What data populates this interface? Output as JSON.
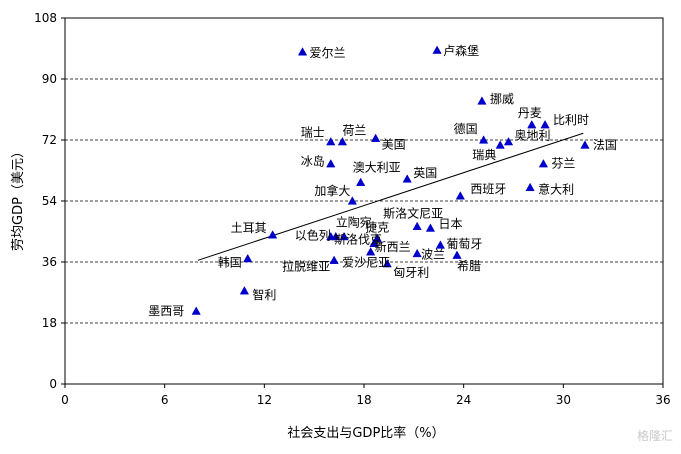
{
  "chart_data": {
    "type": "scatter",
    "title": "",
    "xlabel": "社会支出与GDP比率（%）",
    "ylabel": "劳均GDP（美元）",
    "xlim": [
      0,
      36
    ],
    "ylim": [
      0,
      108
    ],
    "xticks": [
      0,
      6,
      12,
      18,
      24,
      30,
      36
    ],
    "yticks": [
      0,
      18,
      36,
      54,
      72,
      90,
      108
    ],
    "grid": "horizontal-dashed",
    "marker": "triangle",
    "marker_color": "#0000cc",
    "trendline": {
      "x": [
        8,
        31.2
      ],
      "y": [
        36.5,
        74
      ]
    },
    "points": [
      {
        "label": "墨西哥",
        "x": 7.9,
        "y": 21.5
      },
      {
        "label": "智利",
        "x": 10.8,
        "y": 27.5
      },
      {
        "label": "韩国",
        "x": 11,
        "y": 37
      },
      {
        "label": "土耳其",
        "x": 12.5,
        "y": 44
      },
      {
        "label": "爱尔兰",
        "x": 14.3,
        "y": 98
      },
      {
        "label": "瑞士",
        "x": 16,
        "y": 71.5
      },
      {
        "label": "荷兰",
        "x": 16.7,
        "y": 71.5
      },
      {
        "label": "冰岛",
        "x": 16,
        "y": 65
      },
      {
        "label": "以色列",
        "x": 16,
        "y": 43.5
      },
      {
        "label": "立陶宛",
        "x": 16.3,
        "y": 43.5
      },
      {
        "label": "爱沙尼亚",
        "x": 16.8,
        "y": 43.5
      },
      {
        "label": "拉脱维亚",
        "x": 16.2,
        "y": 36.5
      },
      {
        "label": "加拿大",
        "x": 17.3,
        "y": 54
      },
      {
        "label": "澳大利亚",
        "x": 17.8,
        "y": 59.5
      },
      {
        "label": "美国",
        "x": 18.7,
        "y": 72.5
      },
      {
        "label": "捷克",
        "x": 18.8,
        "y": 43
      },
      {
        "label": "斯洛伐克",
        "x": 18.6,
        "y": 41.5
      },
      {
        "label": "新西兰",
        "x": 18.4,
        "y": 39
      },
      {
        "label": "匈牙利",
        "x": 19.4,
        "y": 35.5
      },
      {
        "label": "英国",
        "x": 20.6,
        "y": 60.5
      },
      {
        "label": "斯洛文尼亚",
        "x": 21.2,
        "y": 46.5
      },
      {
        "label": "日本",
        "x": 22,
        "y": 46
      },
      {
        "label": "波兰",
        "x": 21.2,
        "y": 38.5
      },
      {
        "label": "葡萄牙",
        "x": 22.6,
        "y": 41
      },
      {
        "label": "希腊",
        "x": 23.6,
        "y": 38
      },
      {
        "label": "西班牙",
        "x": 23.8,
        "y": 55.5
      },
      {
        "label": "卢森堡",
        "x": 22.4,
        "y": 98.5
      },
      {
        "label": "挪威",
        "x": 25.1,
        "y": 83.5
      },
      {
        "label": "德国",
        "x": 25.2,
        "y": 72
      },
      {
        "label": "瑞典",
        "x": 26.2,
        "y": 70.5
      },
      {
        "label": "奥地利",
        "x": 26.7,
        "y": 71.5
      },
      {
        "label": "丹麦",
        "x": 28.1,
        "y": 76.5
      },
      {
        "label": "比利时",
        "x": 28.9,
        "y": 76.5
      },
      {
        "label": "意大利",
        "x": 28,
        "y": 58
      },
      {
        "label": "芬兰",
        "x": 28.8,
        "y": 65
      },
      {
        "label": "法国",
        "x": 31.3,
        "y": 70.5
      }
    ]
  },
  "watermark_text": "格隆汇"
}
